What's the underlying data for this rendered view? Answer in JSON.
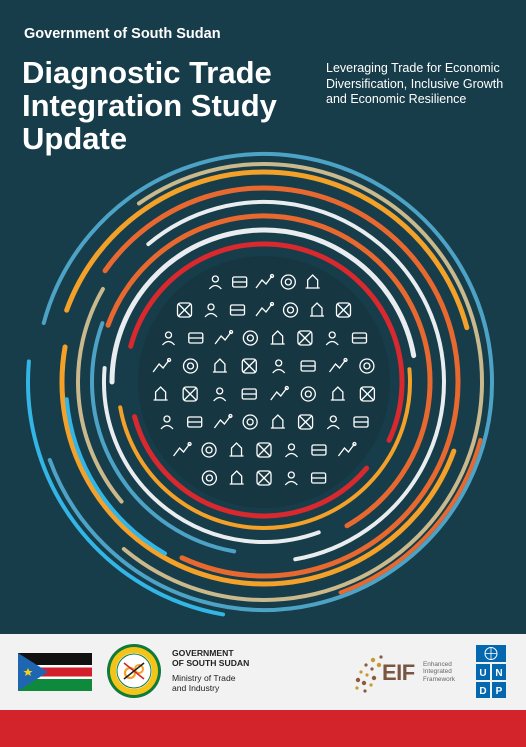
{
  "header": {
    "government": "Government of South Sudan",
    "title": "Diagnostic Trade Integration Study Update",
    "subtitle": "Leveraging Trade for Economic Diversification, Inclusive Growth and Economic Resilience"
  },
  "cover_graphic": {
    "ring_colors": [
      "#4da3c6",
      "#c9b98c",
      "#f4a12a",
      "#e8692f",
      "#e9edf0",
      "#d7292e",
      "#33b5e5"
    ],
    "icons": [
      "hands-people-icon",
      "plane-icon",
      "pig-icon",
      "people-group-icon",
      "person-icon",
      "chicken-icon",
      "carrot-icon",
      "tree-icon",
      "ship-icon",
      "factory-icon",
      "plant-icon",
      "tractor-icon",
      "target-icon",
      "wind-turbine-icon",
      "box-icon",
      "presentation-icon",
      "cattle-icon",
      "handshake-icon",
      "truck-icon",
      "solar-panel-icon",
      "money-icon",
      "road-icon",
      "gear-icon",
      "globe-icon",
      "lightbulb-icon",
      "warehouse-icon",
      "fish-icon",
      "oil-barrel-icon",
      "wheat-icon"
    ]
  },
  "footer": {
    "ministry_government": "GOVERNMENT\nOF SOUTH SUDAN",
    "ministry_name": "Ministry of Trade\nand Industry",
    "eif_word": "EIF",
    "eif_desc": "Enhanced\nIntegrated\nFramework",
    "undp_letters": [
      "U",
      "N",
      "D",
      "P"
    ],
    "colors": {
      "footer_bg": "#f2f2f2",
      "red_bar": "#d4242b",
      "undp_blue": "#0468b1",
      "cover_bg": "#183d4a"
    }
  }
}
